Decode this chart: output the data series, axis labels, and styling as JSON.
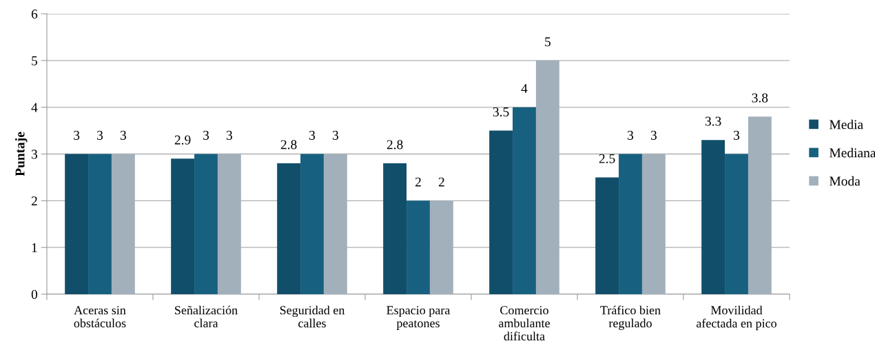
{
  "chart_data": {
    "type": "bar",
    "ylabel": "Puntaje",
    "categories": [
      "Aceras sin\nobstáculos",
      "Señalización\nclara",
      "Seguridad en\ncalles",
      "Espacio para\npeatones",
      "Comercio\nambulante\ndificulta",
      "Tráfico bien\nregulado",
      "Movilidad\nafectada en pico"
    ],
    "series": [
      {
        "name": "Media",
        "color": "#114e6a",
        "values": [
          3,
          2.9,
          2.8,
          2.8,
          3.5,
          2.5,
          3.3
        ]
      },
      {
        "name": "Mediana",
        "color": "#17607f",
        "values": [
          3,
          3,
          3,
          2,
          4,
          3,
          3
        ]
      },
      {
        "name": "Moda",
        "color": "#a2b0bc",
        "values": [
          3,
          3,
          3,
          2,
          5,
          3,
          3.8
        ]
      }
    ],
    "ylim": [
      0,
      6
    ],
    "yticks": [
      0,
      1,
      2,
      3,
      4,
      5,
      6
    ],
    "grid": "y",
    "legend": "right",
    "data_labels": true
  }
}
